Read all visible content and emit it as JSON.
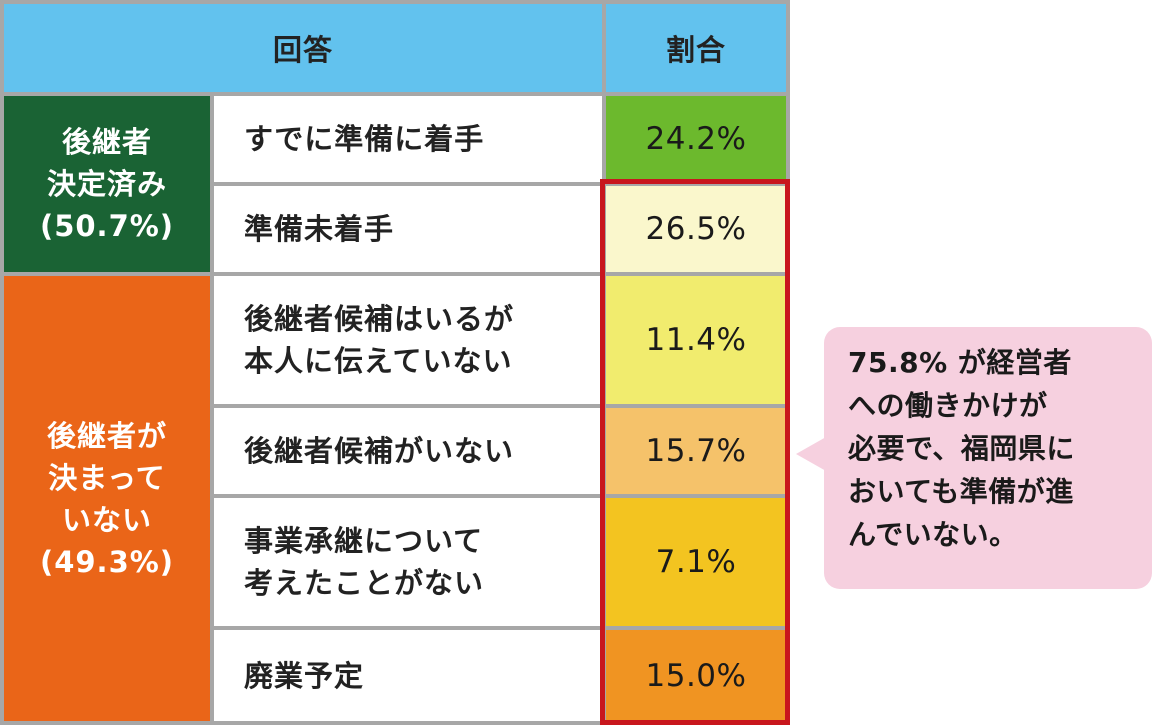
{
  "table": {
    "header": {
      "answer": "回答",
      "ratio": "割合"
    },
    "groups": [
      {
        "label": "後継者\n決定済み\n(50.7%)",
        "color": "#1a6334"
      },
      {
        "label": "後継者が\n決まって\nいない\n(49.3%)",
        "color": "#ea6518"
      }
    ],
    "rows": [
      {
        "answer": "すでに準備に着手",
        "percent": "24.2%",
        "color": "#6cb92d"
      },
      {
        "answer": "準備未着手",
        "percent": "26.5%",
        "color": "#faf7cc"
      },
      {
        "answer": "後継者候補はいるが\n本人に伝えていない",
        "percent": "11.4%",
        "color": "#f1ec6e"
      },
      {
        "answer": "後継者候補がいない",
        "percent": "15.7%",
        "color": "#f5c26a"
      },
      {
        "answer": "事業承継について\n考えたことがない",
        "percent": "7.1%",
        "color": "#f3c420"
      },
      {
        "answer": "廃業予定",
        "percent": "15.0%",
        "color": "#f09422"
      }
    ]
  },
  "callout": {
    "text": "75.8% が経営者\nへの働きかけが\n必要で、福岡県に\nおいても準備が進\nんでいない。"
  },
  "colors": {
    "header": "#62c2ee",
    "highlight_border": "#c8161d",
    "callout_bg": "#f6d0df"
  }
}
